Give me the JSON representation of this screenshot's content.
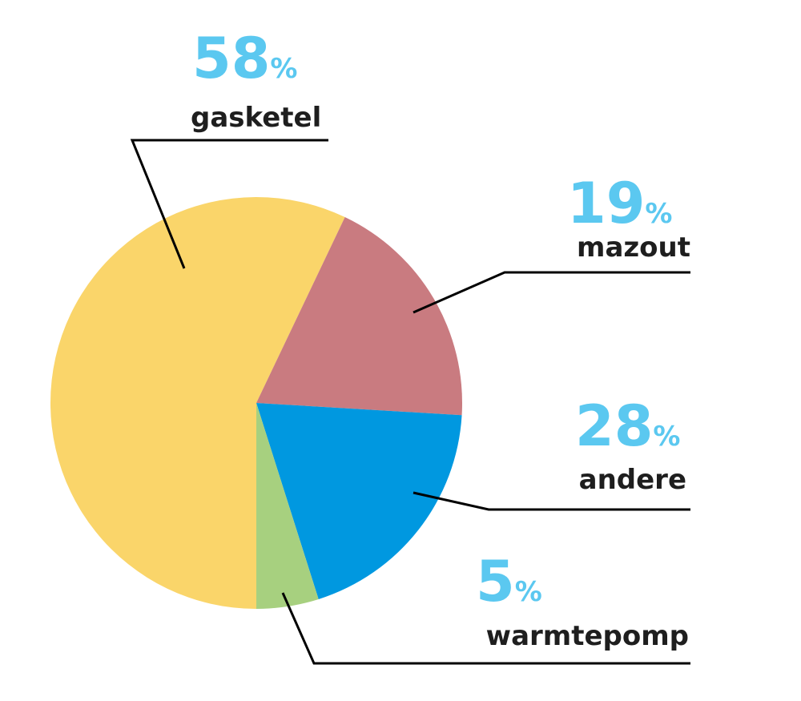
{
  "chart_data": {
    "type": "pie",
    "slices": [
      {
        "label": "gasketel",
        "percent": 58,
        "pct_text": "58",
        "color": "#fad56a"
      },
      {
        "label": "mazout",
        "percent": 19,
        "pct_text": "19",
        "color": "#c97b80"
      },
      {
        "label": "andere",
        "percent": 28,
        "pct_text": "28",
        "color": "#0098e0"
      },
      {
        "label": "warmtepomp",
        "percent": 5,
        "pct_text": "5",
        "color": "#a7d07f"
      }
    ],
    "percent_sign": "%"
  }
}
